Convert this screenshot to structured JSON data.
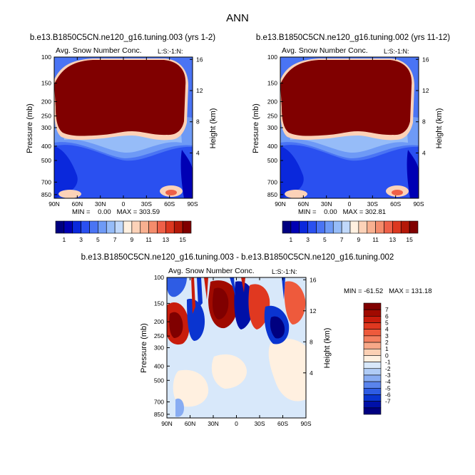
{
  "figure_title": "ANN",
  "chart_data": [
    {
      "type": "heatmap",
      "title": "b.e13.B1850C5CN.ne120_g16.tuning.003 (yrs 1-2)",
      "subtitle": "Avg. Snow Number Conc.",
      "unit_label": "L:S:-1:N:",
      "ylabel": "Pressure (mb)",
      "y2label": "Height (km)",
      "xticks": [
        "90N",
        "60N",
        "30N",
        "0",
        "30S",
        "60S",
        "90S"
      ],
      "yticks": [
        "100",
        "150",
        "200",
        "250",
        "300",
        "400",
        "500",
        "700",
        "850"
      ],
      "y2ticks": [
        "16",
        "12",
        "8",
        "4"
      ],
      "stats": "MIN =    0.00   MAX = 303.59",
      "colorbar_labels": [
        "1",
        "3",
        "5",
        "7",
        "9",
        "11",
        "13",
        "15"
      ],
      "colors": [
        "#000080",
        "#0000b4",
        "#0a28dc",
        "#2a50f0",
        "#4a74f4",
        "#6e9af6",
        "#96bcf8",
        "#c0d8fa",
        "#fff0e0",
        "#fcd2b8",
        "#f8b090",
        "#f48c6c",
        "#ee6048",
        "#dc3820",
        "#b41808",
        "#800000"
      ]
    },
    {
      "type": "heatmap",
      "title": "b.e13.B1850C5CN.ne120_g16.tuning.002 (yrs 11-12)",
      "subtitle": "Avg. Snow Number Conc.",
      "unit_label": "L:S:-1:N:",
      "ylabel": "Pressure (mb)",
      "y2label": "Height (km)",
      "xticks": [
        "90N",
        "60N",
        "30N",
        "0",
        "30S",
        "60S",
        "90S"
      ],
      "yticks": [
        "100",
        "150",
        "200",
        "250",
        "300",
        "400",
        "500",
        "700",
        "850"
      ],
      "y2ticks": [
        "16",
        "12",
        "8",
        "4"
      ],
      "stats": "MIN =    0.00   MAX = 302.81",
      "colorbar_labels": [
        "1",
        "3",
        "5",
        "7",
        "9",
        "11",
        "13",
        "15"
      ],
      "colors": [
        "#000080",
        "#0000b4",
        "#0a28dc",
        "#2a50f0",
        "#4a74f4",
        "#6e9af6",
        "#96bcf8",
        "#c0d8fa",
        "#fff0e0",
        "#fcd2b8",
        "#f8b090",
        "#f48c6c",
        "#ee6048",
        "#dc3820",
        "#b41808",
        "#800000"
      ]
    },
    {
      "type": "heatmap",
      "title": "b.e13.B1850C5CN.ne120_g16.tuning.003 - b.e13.B1850C5CN.ne120_g16.tuning.002",
      "subtitle": "Avg. Snow Number Conc.",
      "unit_label": "L:S:-1:N:",
      "ylabel": "Pressure (mb)",
      "y2label": "Height (km)",
      "xticks": [
        "90N",
        "60N",
        "30N",
        "0",
        "30S",
        "60S",
        "90S"
      ],
      "yticks": [
        "100",
        "150",
        "200",
        "250",
        "300",
        "400",
        "500",
        "700",
        "850"
      ],
      "y2ticks": [
        "16",
        "12",
        "8",
        "4"
      ],
      "stats": "MIN = -61.52   MAX = 131.18",
      "colorbar_labels": [
        "7",
        "6",
        "5",
        "4",
        "3",
        "2",
        "1",
        "0",
        "-1",
        "-2",
        "-3",
        "-4",
        "-5",
        "-6",
        "-7"
      ],
      "colors": [
        "#800000",
        "#a00a00",
        "#c81c0c",
        "#e03820",
        "#ee5a3c",
        "#f48060",
        "#f8a888",
        "#fcd0b4",
        "#fff0e0",
        "#d8e8fa",
        "#b0ccf6",
        "#88acf2",
        "#5a84ec",
        "#2e5ce4",
        "#0a34d0",
        "#0010a8",
        "#000080"
      ]
    }
  ]
}
